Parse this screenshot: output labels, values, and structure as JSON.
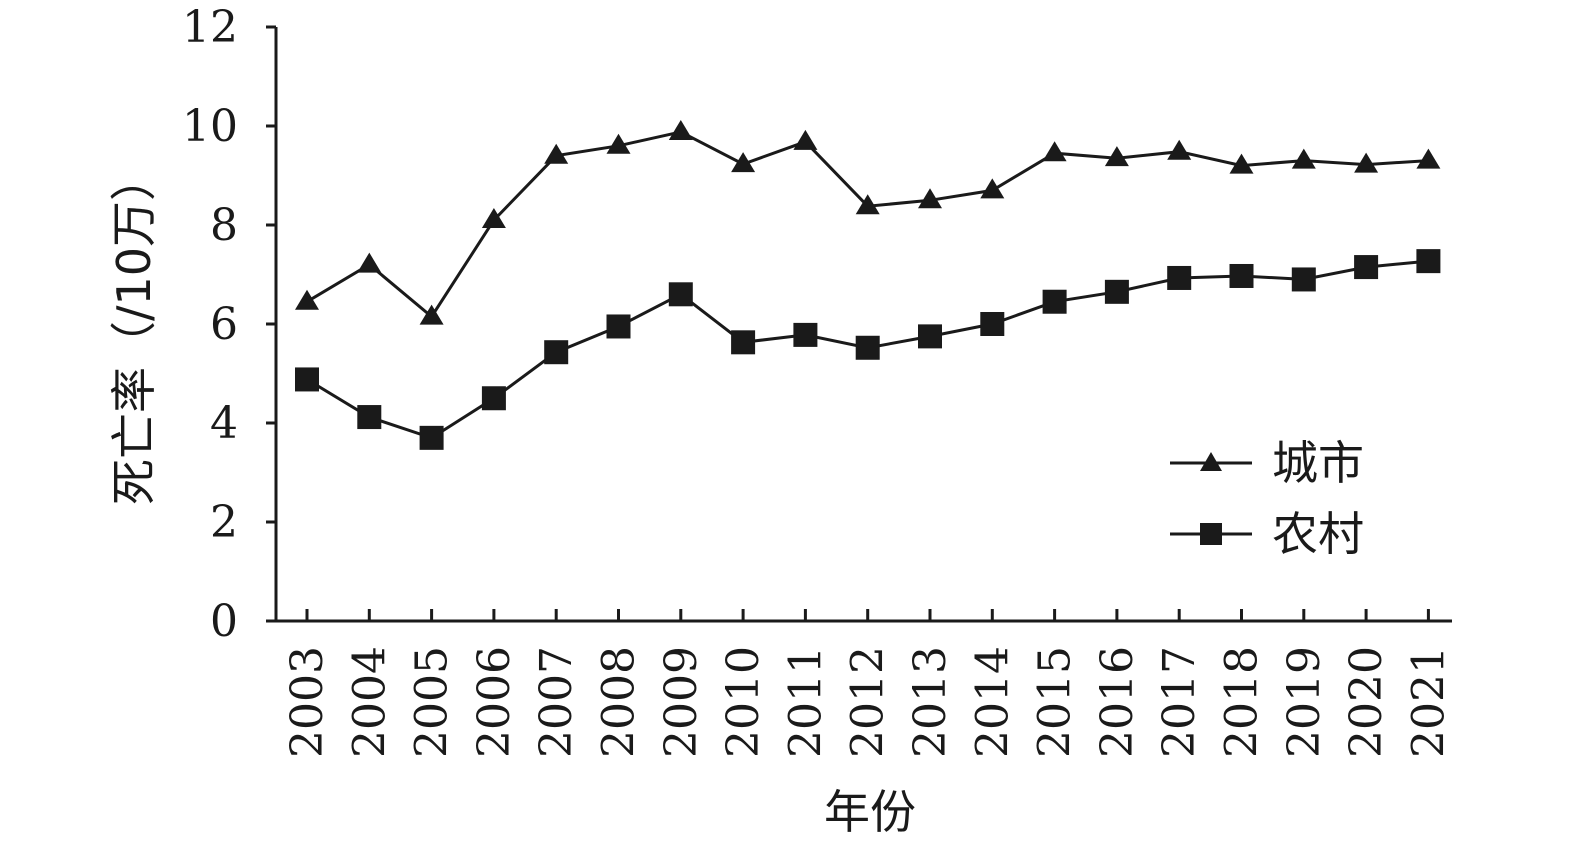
{
  "chart_data": {
    "type": "line",
    "title": "",
    "xlabel": "年份",
    "ylabel": "死亡率（/10万）",
    "ylim": [
      0,
      12
    ],
    "yticks": [
      "0",
      "2",
      "4",
      "6",
      "8",
      "10",
      "12"
    ],
    "categories": [
      "2003",
      "2004",
      "2005",
      "2006",
      "2007",
      "2008",
      "2009",
      "2010",
      "2011",
      "2012",
      "2013",
      "2014",
      "2015",
      "2016",
      "2017",
      "2018",
      "2019",
      "2020",
      "2021"
    ],
    "grid": false,
    "legend_position": "bottom-right",
    "series": [
      {
        "name": "城市",
        "marker": "triangle",
        "values": [
          6.45,
          7.2,
          6.15,
          8.1,
          9.4,
          9.6,
          9.88,
          9.23,
          9.68,
          8.38,
          8.5,
          8.7,
          9.45,
          9.35,
          9.48,
          9.2,
          9.3,
          9.22,
          9.3
        ]
      },
      {
        "name": "农村",
        "marker": "square",
        "values": [
          4.88,
          4.12,
          3.7,
          4.5,
          5.43,
          5.95,
          6.6,
          5.63,
          5.78,
          5.52,
          5.75,
          6.0,
          6.45,
          6.65,
          6.93,
          6.97,
          6.9,
          7.15,
          7.27
        ]
      }
    ]
  }
}
